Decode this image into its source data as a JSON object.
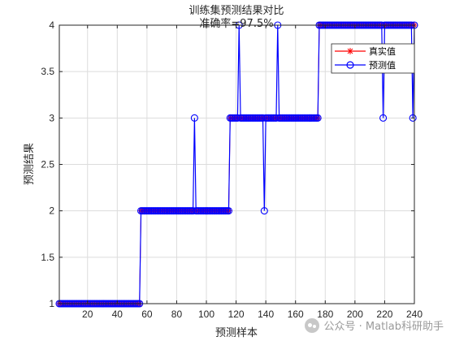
{
  "chart_data": {
    "type": "line",
    "title": "训练集预测结果对比",
    "subtitle": "准确率=97.5%",
    "xlabel": "预测样本",
    "ylabel": "预测结果",
    "xlim": [
      1,
      240
    ],
    "ylim": [
      1,
      4
    ],
    "xticks": [
      20,
      40,
      60,
      80,
      100,
      120,
      140,
      160,
      180,
      200,
      220,
      240
    ],
    "yticks": [
      1,
      1.5,
      2,
      2.5,
      3,
      3.5,
      4
    ],
    "ytick_labels": [
      "1",
      "1.5",
      "2",
      "2.5",
      "3",
      "3.5",
      "4"
    ],
    "grid": true,
    "legend_position": "top-right",
    "segments": [
      {
        "from": 1,
        "to": 55,
        "value": 1
      },
      {
        "from": 56,
        "to": 115,
        "value": 2
      },
      {
        "from": 116,
        "to": 175,
        "value": 3
      },
      {
        "from": 176,
        "to": 240,
        "value": 4
      }
    ],
    "prediction_errors": [
      {
        "x": 92,
        "value": 3
      },
      {
        "x": 122,
        "value": 4
      },
      {
        "x": 139,
        "value": 2
      },
      {
        "x": 148,
        "value": 4
      },
      {
        "x": 219,
        "value": 3
      },
      {
        "x": 239,
        "value": 3
      }
    ],
    "series": [
      {
        "name": "真实值",
        "color": "#ff0000",
        "marker": "asterisk"
      },
      {
        "name": "预测值",
        "color": "#0000ff",
        "marker": "circle"
      }
    ]
  },
  "watermark": {
    "text": "公众号 · Matlab科研助手"
  }
}
